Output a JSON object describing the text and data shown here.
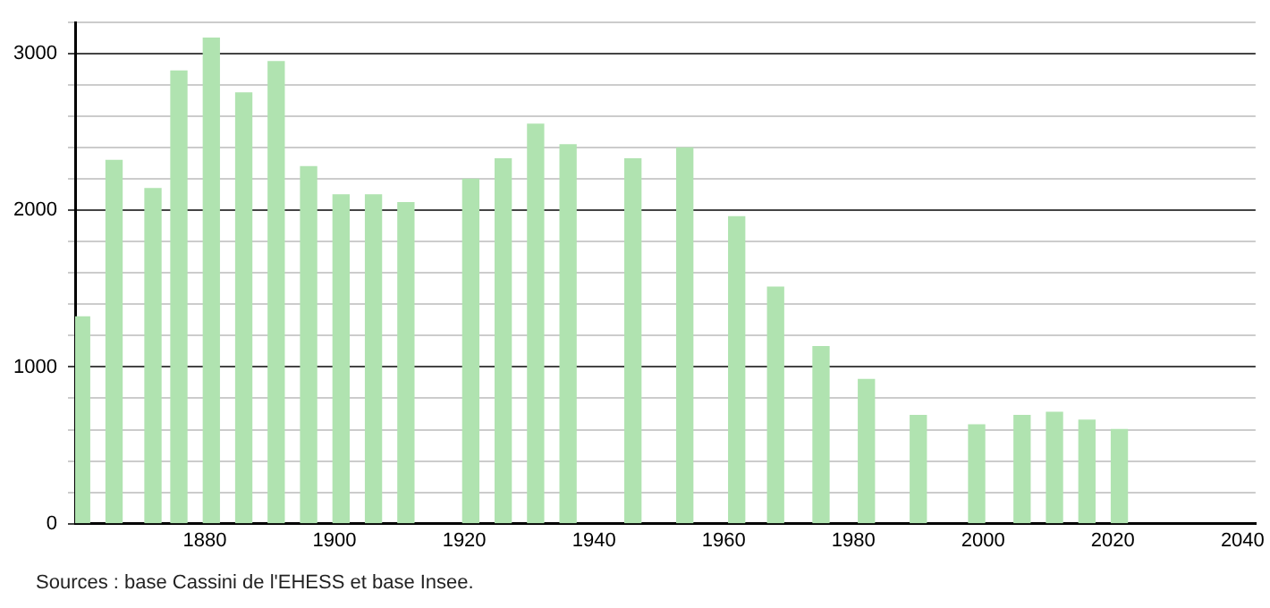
{
  "chart_data": {
    "type": "bar",
    "x": [
      1861,
      1866,
      1872,
      1876,
      1881,
      1886,
      1891,
      1896,
      1901,
      1906,
      1911,
      1921,
      1926,
      1931,
      1936,
      1946,
      1954,
      1962,
      1968,
      1975,
      1982,
      1990,
      1999,
      2006,
      2011,
      2016,
      2021
    ],
    "values": [
      1320,
      2320,
      2140,
      2890,
      3100,
      2750,
      2950,
      2280,
      2100,
      2100,
      2050,
      2200,
      2330,
      2550,
      2420,
      2330,
      2400,
      1960,
      1510,
      1130,
      920,
      690,
      630,
      690,
      710,
      660,
      600
    ],
    "color": "#b0e3b0",
    "xlim": [
      1860,
      2042
    ],
    "xticks": [
      1880,
      1900,
      1920,
      1940,
      1960,
      1980,
      2000,
      2020,
      2040
    ],
    "ylim": [
      0,
      3200
    ],
    "yticks": [
      0,
      {
        "value": 200,
        "label": null
      },
      {
        "value": 400,
        "label": null
      },
      {
        "value": 600,
        "label": null
      },
      {
        "value": 800,
        "label": null
      },
      1000,
      {
        "value": 1200,
        "label": null
      },
      {
        "value": 1400,
        "label": null
      },
      {
        "value": 1600,
        "label": null
      },
      {
        "value": 1800,
        "label": null
      },
      2000,
      {
        "value": 2200,
        "label": null
      },
      {
        "value": 2400,
        "label": null
      },
      {
        "value": 2600,
        "label": null
      },
      {
        "value": 2800,
        "label": null
      },
      3000,
      {
        "value": 3200,
        "label": null
      }
    ],
    "grid": "y",
    "annotations": [
      "Sources : base Cassini de l'EHESS et base Insee."
    ]
  }
}
